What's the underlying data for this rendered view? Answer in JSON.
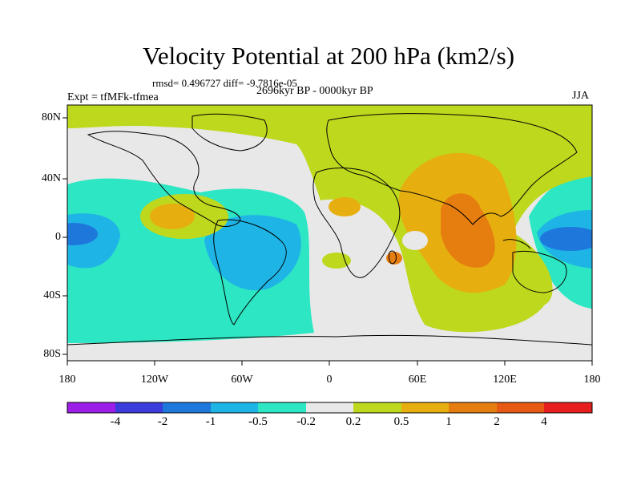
{
  "header": {
    "title": "Velocity Potential at 200 hPa (km2/s)",
    "stats": "rmsd= 0.496727 diff= -9.7816e-05",
    "period": "2696kyr BP - 0000kyr BP",
    "experiment": "Expt = tfMFk-tfmea",
    "season": "JJA"
  },
  "axes": {
    "y_ticks": [
      "80N",
      "40N",
      "0",
      "40S",
      "80S"
    ],
    "x_ticks": [
      "180",
      "120W",
      "60W",
      "0",
      "60E",
      "120E",
      "180"
    ]
  },
  "colorbar": {
    "labels": [
      "-4",
      "-2",
      "-1",
      "-0.5",
      "-0.2",
      "0.2",
      "0.5",
      "1",
      "2",
      "4"
    ],
    "colors": [
      "#9d1ee6",
      "#3c3cdc",
      "#1e78dc",
      "#1eb4e6",
      "#2de6c3",
      "#e8e8e8",
      "#bed81e",
      "#e6af0f",
      "#e67d0f",
      "#e65a14",
      "#e61e1e"
    ]
  }
}
